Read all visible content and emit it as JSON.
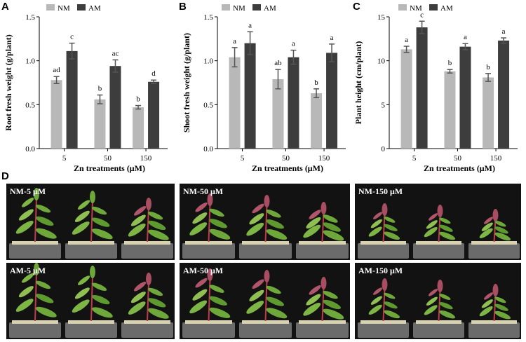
{
  "chart_data": [
    {
      "panel": "A",
      "type": "bar",
      "xlabel": "Zn treatments (μM)",
      "ylabel": "Root fresh weight (g/plant)",
      "categories": [
        "5",
        "50",
        "150"
      ],
      "ylim": [
        0,
        1.5
      ],
      "yticks": [
        "0.0",
        "0.5",
        "1.0",
        "1.5"
      ],
      "series": [
        {
          "name": "NM",
          "color": "#b8b8b8",
          "values": [
            0.78,
            0.56,
            0.47
          ],
          "errors": [
            0.04,
            0.05,
            0.02
          ],
          "labels": [
            "ad",
            "b",
            "b"
          ]
        },
        {
          "name": "AM",
          "color": "#3d3d3d",
          "values": [
            1.11,
            0.94,
            0.76
          ],
          "errors": [
            0.09,
            0.07,
            0.02
          ],
          "labels": [
            "c",
            "ac",
            "d"
          ]
        }
      ]
    },
    {
      "panel": "B",
      "type": "bar",
      "xlabel": "Zn treatments (μM)",
      "ylabel": "Shoot fresh weight (g/plant)",
      "categories": [
        "5",
        "50",
        "150"
      ],
      "ylim": [
        0,
        1.5
      ],
      "yticks": [
        "0.0",
        "0.5",
        "1.0",
        "1.5"
      ],
      "series": [
        {
          "name": "NM",
          "color": "#b8b8b8",
          "values": [
            1.04,
            0.79,
            0.63
          ],
          "errors": [
            0.11,
            0.11,
            0.05
          ],
          "labels": [
            "a",
            "ab",
            "b"
          ]
        },
        {
          "name": "AM",
          "color": "#3d3d3d",
          "values": [
            1.2,
            1.04,
            1.09
          ],
          "errors": [
            0.13,
            0.08,
            0.1
          ],
          "labels": [
            "a",
            "a",
            "a"
          ]
        }
      ]
    },
    {
      "panel": "C",
      "type": "bar",
      "xlabel": "Zn treatments (μM)",
      "ylabel": "Plant height (cm/plant)",
      "categories": [
        "5",
        "50",
        "150"
      ],
      "ylim": [
        0,
        15
      ],
      "yticks": [
        "0",
        "5",
        "10",
        "15"
      ],
      "series": [
        {
          "name": "NM",
          "color": "#b8b8b8",
          "values": [
            11.3,
            8.8,
            8.1
          ],
          "errors": [
            0.35,
            0.2,
            0.45
          ],
          "labels": [
            "a",
            "b",
            "b"
          ]
        },
        {
          "name": "AM",
          "color": "#3d3d3d",
          "values": [
            13.8,
            11.6,
            12.3
          ],
          "errors": [
            0.7,
            0.35,
            0.3
          ],
          "labels": [
            "c",
            "a",
            "a"
          ]
        }
      ]
    }
  ],
  "photo_panel": {
    "letter": "D",
    "labels": [
      "NM-5 μM",
      "NM-50 μM",
      "NM-150 μM",
      "AM-5 μM",
      "AM-50 μM",
      "AM-150 μM"
    ]
  },
  "colors": {
    "nm": "#b8b8b8",
    "am": "#3d3d3d",
    "photo_bg": "#121212",
    "leaf": "#6ea83a",
    "stem": "#c23a4a"
  }
}
